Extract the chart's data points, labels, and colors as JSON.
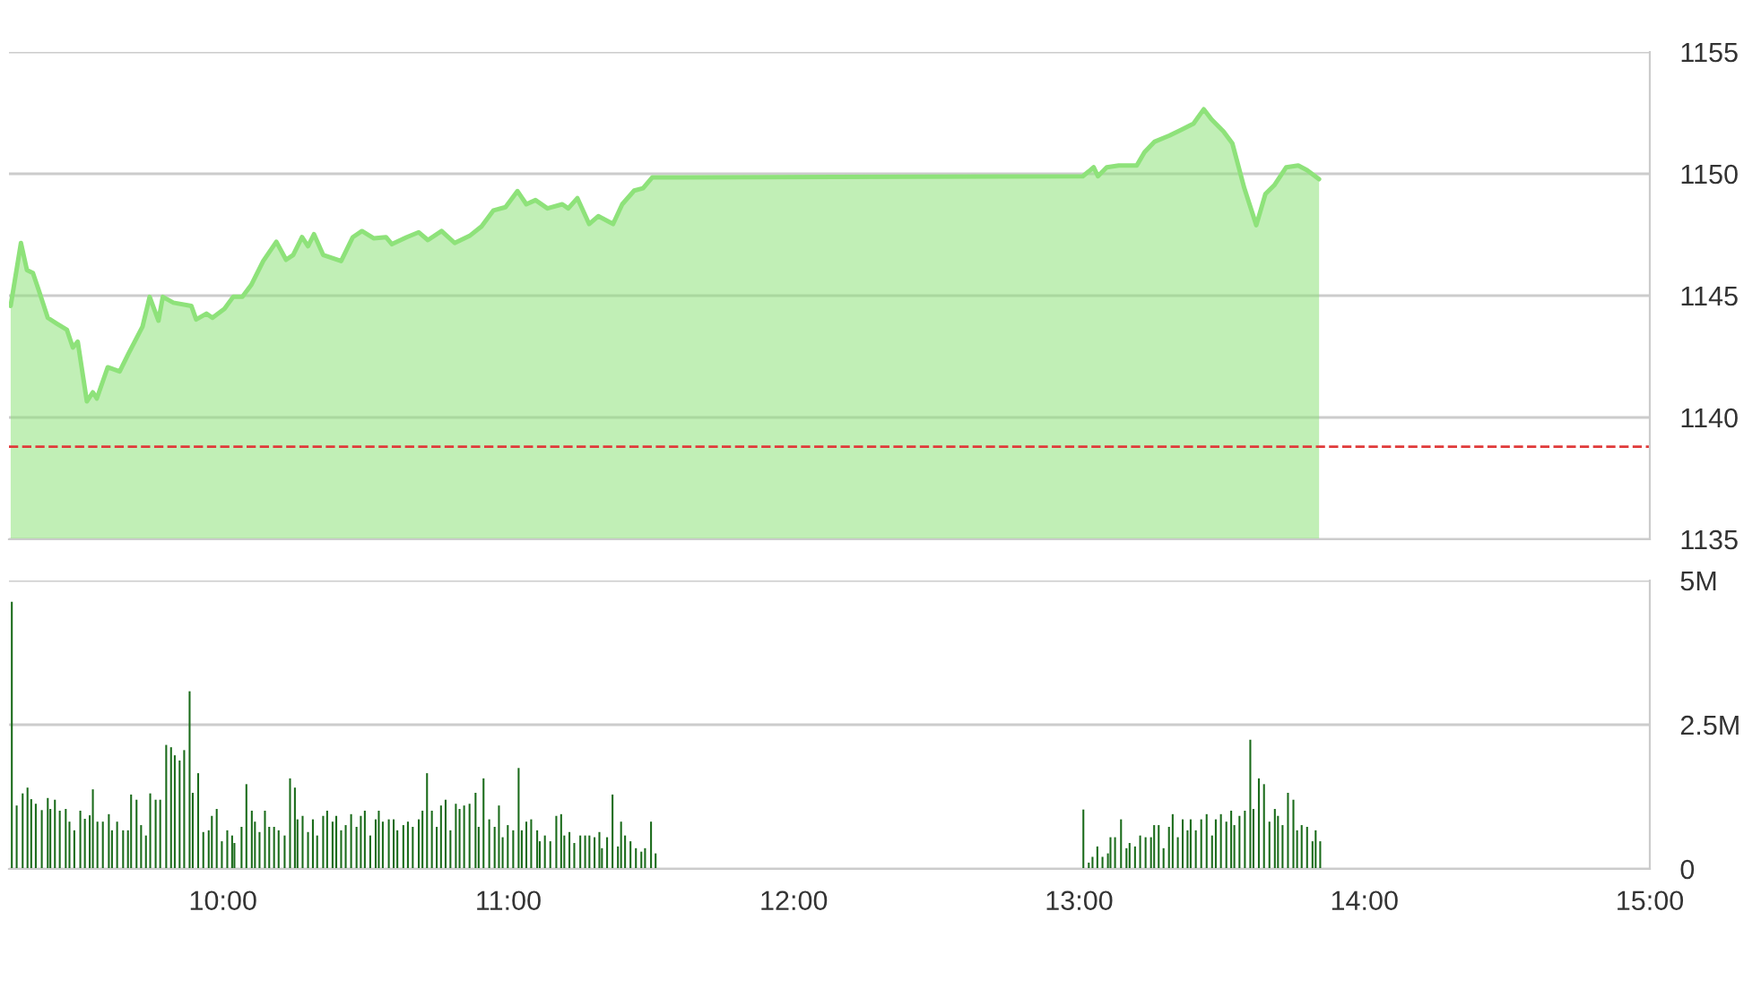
{
  "chart_data": [
    {
      "type": "area",
      "xlim": [
        9.25,
        15
      ],
      "ylim": [
        1135,
        1155
      ],
      "yticks": [
        1135,
        1140,
        1145,
        1150,
        1155
      ],
      "grid": "y",
      "tick_labels": "y",
      "series": [
        {
          "color": "#8ee27a",
          "x": [
            9.256,
            9.292,
            9.313,
            9.334,
            9.355,
            9.386,
            9.418,
            9.453,
            9.474,
            9.491,
            9.523,
            9.544,
            9.558,
            9.596,
            9.638,
            9.669,
            9.718,
            9.743,
            9.774,
            9.789,
            9.826,
            9.889,
            9.906,
            9.942,
            9.963,
            10.005,
            10.036,
            10.068,
            10.099,
            10.141,
            10.187,
            10.221,
            10.246,
            10.277,
            10.298,
            10.319,
            10.351,
            10.414,
            10.455,
            10.487,
            10.529,
            10.571,
            10.592,
            10.644,
            10.686,
            10.718,
            10.766,
            10.812,
            10.864,
            10.906,
            10.948,
            10.99,
            11.032,
            11.063,
            11.095,
            11.137,
            11.189,
            11.21,
            11.242,
            11.283,
            11.315,
            11.367,
            11.399,
            11.441,
            11.472,
            11.504,
            13.013,
            13.034,
            13.051,
            13.066,
            13.097,
            13.139,
            13.202,
            13.229,
            13.265,
            13.317,
            13.359,
            13.401,
            13.437,
            13.464,
            13.506,
            13.537,
            13.579,
            13.621,
            13.653,
            13.684,
            13.726,
            13.768,
            13.799,
            13.841
          ],
          "values": [
            1144.58,
            1147.16,
            1146.05,
            1145.93,
            1145.2,
            1144.09,
            1143.85,
            1143.6,
            1142.87,
            1143.11,
            1140.66,
            1141.03,
            1140.78,
            1142.06,
            1141.89,
            1142.62,
            1143.73,
            1144.95,
            1143.97,
            1144.95,
            1144.71,
            1144.58,
            1144.02,
            1144.26,
            1144.09,
            1144.46,
            1144.95,
            1144.95,
            1145.44,
            1146.42,
            1147.21,
            1146.47,
            1146.67,
            1147.4,
            1147.03,
            1147.52,
            1146.67,
            1146.42,
            1147.4,
            1147.65,
            1147.35,
            1147.4,
            1147.11,
            1147.4,
            1147.6,
            1147.28,
            1147.65,
            1147.16,
            1147.45,
            1147.84,
            1148.5,
            1148.63,
            1149.29,
            1148.75,
            1148.92,
            1148.58,
            1148.75,
            1148.58,
            1149.0,
            1147.94,
            1148.26,
            1147.94,
            1148.75,
            1149.31,
            1149.41,
            1149.85,
            1149.9,
            1150.1,
            1150.27,
            1149.9,
            1150.27,
            1150.34,
            1150.34,
            1150.88,
            1151.32,
            1151.57,
            1151.81,
            1152.06,
            1152.65,
            1152.23,
            1151.74,
            1151.25,
            1149.41,
            1147.89,
            1149.17,
            1149.53,
            1150.27,
            1150.34,
            1150.15,
            1149.78
          ]
        }
      ],
      "ref_lines": [
        {
          "axis": "y",
          "value": 1138.8,
          "color": "#e03a3a",
          "line_style": "dashed"
        }
      ]
    },
    {
      "type": "bar",
      "xlim": [
        9.25,
        15
      ],
      "xticks": [
        {
          "value": 10,
          "label": "10:00"
        },
        {
          "value": 11,
          "label": "11:00"
        },
        {
          "value": 12,
          "label": "12:00"
        },
        {
          "value": 13,
          "label": "13:00"
        },
        {
          "value": 14,
          "label": "14:00"
        },
        {
          "value": 15,
          "label": "15:00"
        }
      ],
      "ylim": [
        0,
        5
      ],
      "yticks": [
        {
          "value": 0,
          "label": "0"
        },
        {
          "value": 2.5,
          "label": "2.5M"
        },
        {
          "value": 5,
          "label": "5M"
        }
      ],
      "grid": "y",
      "series": [
        {
          "color": "#1a6b1a",
          "x": [
            9.26,
            9.277,
            9.298,
            9.315,
            9.328,
            9.344,
            9.365,
            9.386,
            9.395,
            9.411,
            9.428,
            9.449,
            9.462,
            9.479,
            9.5,
            9.516,
            9.533,
            9.544,
            9.56,
            9.579,
            9.6,
            9.611,
            9.629,
            9.65,
            9.667,
            9.678,
            9.697,
            9.713,
            9.73,
            9.745,
            9.764,
            9.78,
            9.801,
            9.818,
            9.831,
            9.848,
            9.864,
            9.883,
            9.894,
            9.913,
            9.931,
            9.95,
            9.961,
            9.978,
            9.996,
            10.015,
            10.032,
            10.04,
            10.065,
            10.082,
            10.101,
            10.112,
            10.128,
            10.147,
            10.162,
            10.179,
            10.195,
            10.216,
            10.235,
            10.252,
            10.261,
            10.279,
            10.298,
            10.315,
            10.33,
            10.351,
            10.365,
            10.384,
            10.397,
            10.414,
            10.43,
            10.449,
            10.468,
            10.483,
            10.497,
            10.516,
            10.535,
            10.546,
            10.56,
            10.581,
            10.598,
            10.611,
            10.632,
            10.648,
            10.665,
            10.686,
            10.699,
            10.715,
            10.732,
            10.749,
            10.764,
            10.78,
            10.797,
            10.816,
            10.829,
            10.845,
            10.864,
            10.885,
            10.896,
            10.913,
            10.933,
            10.952,
            10.967,
            10.98,
            10.998,
            11.017,
            11.036,
            11.047,
            11.063,
            11.08,
            11.101,
            11.11,
            11.128,
            11.147,
            11.168,
            11.185,
            11.196,
            11.214,
            11.231,
            11.252,
            11.269,
            11.284,
            11.302,
            11.319,
            11.328,
            11.346,
            11.365,
            11.384,
            11.395,
            11.409,
            11.428,
            11.447,
            11.466,
            11.479,
            11.5,
            11.516,
            13.015,
            13.034,
            13.047,
            13.064,
            13.082,
            13.101,
            13.11,
            13.126,
            13.147,
            13.166,
            13.177,
            13.196,
            13.214,
            13.233,
            13.252,
            13.263,
            13.279,
            13.296,
            13.315,
            13.328,
            13.346,
            13.363,
            13.38,
            13.391,
            13.409,
            13.428,
            13.447,
            13.466,
            13.479,
            13.497,
            13.516,
            13.533,
            13.544,
            13.562,
            13.581,
            13.6,
            13.611,
            13.63,
            13.648,
            13.667,
            13.686,
            13.697,
            13.713,
            13.732,
            13.751,
            13.764,
            13.78,
            13.799,
            13.818,
            13.829,
            13.845
          ],
          "values": [
            4.63,
            1.1,
            1.31,
            1.41,
            1.21,
            1.13,
            1.02,
            1.23,
            1.04,
            1.2,
            1.01,
            1.04,
            0.82,
            0.67,
            1.01,
            0.87,
            0.93,
            1.38,
            0.82,
            0.82,
            0.95,
            0.67,
            0.82,
            0.67,
            0.67,
            1.29,
            1.2,
            0.76,
            0.58,
            1.31,
            1.2,
            1.2,
            2.15,
            2.11,
            1.97,
            1.88,
            2.06,
            3.08,
            1.32,
            1.66,
            0.64,
            0.67,
            0.92,
            1.04,
            0.48,
            0.67,
            0.58,
            0.45,
            0.73,
            1.47,
            1.01,
            0.82,
            0.64,
            1.01,
            0.73,
            0.73,
            0.67,
            0.58,
            1.57,
            1.41,
            0.86,
            0.92,
            0.64,
            0.86,
            0.58,
            0.92,
            1.01,
            0.82,
            0.92,
            0.67,
            0.76,
            0.95,
            0.73,
            0.92,
            1.01,
            0.58,
            0.86,
            1.01,
            0.82,
            0.86,
            0.86,
            0.67,
            0.76,
            0.82,
            0.73,
            0.86,
            1.01,
            1.66,
            1.01,
            0.73,
            1.1,
            1.2,
            0.67,
            1.13,
            1.04,
            1.1,
            1.13,
            1.32,
            0.73,
            1.57,
            0.86,
            0.73,
            1.1,
            0.55,
            0.76,
            0.67,
            1.75,
            0.67,
            0.82,
            0.86,
            0.67,
            0.48,
            0.58,
            0.48,
            0.92,
            0.95,
            0.58,
            0.64,
            0.45,
            0.58,
            0.58,
            0.58,
            0.55,
            0.64,
            0.36,
            0.55,
            1.29,
            0.39,
            0.82,
            0.58,
            0.48,
            0.36,
            0.3,
            0.36,
            0.82,
            0.27,
            1.03,
            0.11,
            0.21,
            0.39,
            0.21,
            0.27,
            0.55,
            0.55,
            0.86,
            0.36,
            0.45,
            0.39,
            0.58,
            0.55,
            0.55,
            0.76,
            0.76,
            0.36,
            0.73,
            0.95,
            0.55,
            0.86,
            0.67,
            0.86,
            0.67,
            0.86,
            0.95,
            0.58,
            0.86,
            0.95,
            0.82,
            1.01,
            0.76,
            0.92,
            1.01,
            2.24,
            1.04,
            1.57,
            1.47,
            0.82,
            1.04,
            0.92,
            0.76,
            1.32,
            1.2,
            0.67,
            0.76,
            0.73,
            0.48,
            0.67,
            0.48
          ]
        }
      ]
    }
  ]
}
